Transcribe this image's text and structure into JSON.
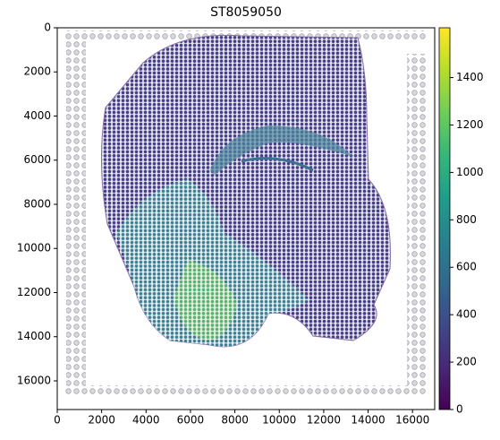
{
  "chart_data": {
    "type": "scatter",
    "title": "ST8059050",
    "xlim": [
      0,
      17000
    ],
    "xticks": [
      0,
      2000,
      4000,
      6000,
      8000,
      10000,
      12000,
      14000,
      16000
    ],
    "ylim": [
      0,
      17300
    ],
    "yticks": [
      0,
      2000,
      4000,
      6000,
      8000,
      10000,
      12000,
      14000,
      16000
    ],
    "y_inverted": true,
    "colorbar": {
      "lim": [
        0,
        1610
      ],
      "ticks": [
        0,
        200,
        400,
        600,
        800,
        1000,
        1200,
        1400
      ],
      "colors": [
        "#440154",
        "#482878",
        "#3e4989",
        "#31688e",
        "#26828e",
        "#1f9e89",
        "#35b779",
        "#6ece58",
        "#b5de2b",
        "#fde725"
      ]
    }
  }
}
